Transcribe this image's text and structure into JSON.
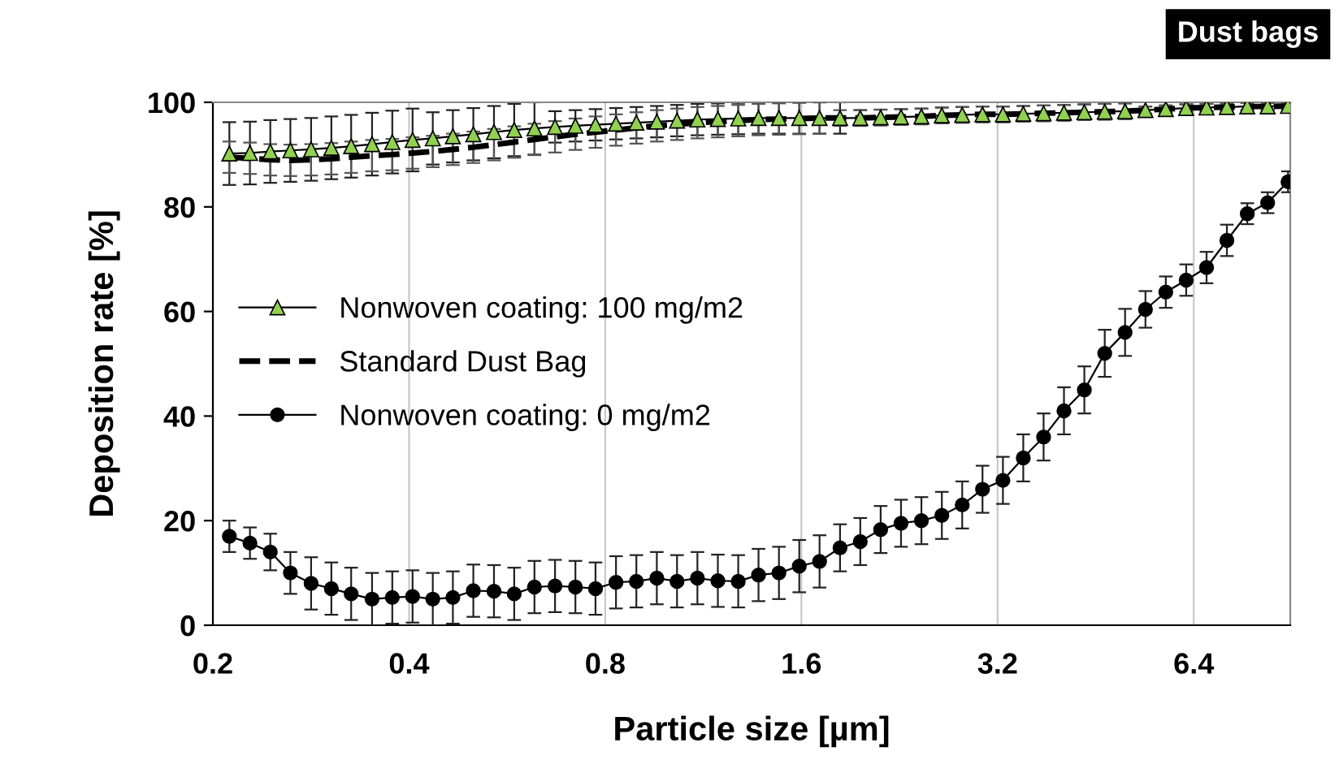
{
  "chart_data": {
    "type": "line",
    "xlabel": "Particle size [µm]",
    "ylabel": "Deposition rate [%]",
    "log": "x",
    "grid": "x",
    "legend": "center left",
    "xlim": [
      0.2,
      9
    ],
    "xticks": [
      0.2,
      0.4,
      0.8,
      1.6,
      3.2,
      6.4
    ],
    "ylim": [
      0,
      100
    ],
    "yticks": [
      0,
      20,
      40,
      60,
      80,
      100
    ],
    "annotations": [
      "Dust bags"
    ],
    "x": [
      0.212,
      0.228,
      0.245,
      0.263,
      0.283,
      0.304,
      0.326,
      0.351,
      0.377,
      0.405,
      0.435,
      0.467,
      0.502,
      0.54,
      0.58,
      0.623,
      0.67,
      0.72,
      0.773,
      0.831,
      0.893,
      0.96,
      1.031,
      1.108,
      1.191,
      1.28,
      1.375,
      1.478,
      1.588,
      1.706,
      1.834,
      1.97,
      2.117,
      2.275,
      2.445,
      2.628,
      2.824,
      3.034,
      3.261,
      3.504,
      3.765,
      4.046,
      4.348,
      4.673,
      5.021,
      5.396,
      5.798,
      6.231,
      6.696,
      7.195,
      7.732,
      8.309,
      8.929
    ],
    "series": [
      {
        "name": "Nonwoven coating: 100 mg/m2",
        "color": "#92d050",
        "marker": "triangle",
        "line_style": "solid",
        "values": [
          90.2,
          90.3,
          90.6,
          90.8,
          91,
          91.3,
          91.6,
          92,
          92.4,
          92.8,
          93.1,
          93.5,
          93.9,
          94.3,
          94.7,
          95,
          95.3,
          95.5,
          95.7,
          95.9,
          96.1,
          96.3,
          96.5,
          96.7,
          96.8,
          96.9,
          97,
          97,
          97,
          97,
          97,
          97,
          97.1,
          97.2,
          97.3,
          97.5,
          97.6,
          97.7,
          97.7,
          97.8,
          97.9,
          98,
          98.1,
          98.2,
          98.3,
          98.5,
          98.7,
          98.9,
          99,
          99.1,
          99.2,
          99.2,
          99.3
        ],
        "errors": [
          6,
          6,
          6,
          6,
          6,
          6,
          6,
          6,
          6,
          6,
          5,
          5,
          5,
          5,
          5,
          5,
          3,
          3,
          3,
          3,
          3,
          3,
          3,
          3,
          3,
          3,
          3,
          3,
          3,
          3,
          3,
          1.5,
          1.5,
          1.5,
          1.5,
          1.5,
          1.5,
          1.5,
          1.5,
          1.5,
          1.5,
          1.5,
          1.5,
          1.5,
          1.5,
          0.7,
          0.7,
          0.7,
          0.7,
          0.7,
          0.7,
          0.7,
          0.7
        ]
      },
      {
        "name": "Standard Dust Bag",
        "color": "#000000",
        "marker": "none",
        "line_style": "dashed",
        "values": [
          89.5,
          89.3,
          89,
          88.9,
          89,
          89.2,
          89.5,
          89.8,
          90,
          90.3,
          90.6,
          91,
          91.4,
          91.9,
          92.4,
          92.9,
          93.4,
          93.9,
          94.3,
          94.7,
          95.1,
          95.5,
          95.8,
          96.1,
          96.3,
          96.5,
          96.7,
          96.8,
          96.9,
          97,
          97,
          97,
          97.1,
          97.2,
          97.3,
          97.5,
          97.6,
          97.7,
          97.7,
          97.8,
          97.9,
          98,
          98.1,
          98.2,
          98.3,
          98.5,
          98.7,
          98.9,
          99,
          99.1,
          99.2,
          99.2,
          99.3
        ],
        "errors": [
          3,
          3,
          3,
          3,
          3,
          3,
          3,
          3,
          3,
          3,
          3,
          3,
          3,
          3,
          3,
          3,
          3,
          3,
          3,
          3,
          3,
          3,
          3,
          3,
          3,
          3,
          3,
          3,
          3,
          3,
          1.5,
          1.5,
          1.5,
          1.5,
          1.5,
          1.5,
          1.5,
          1.5,
          1.5,
          1.5,
          1.5,
          1.5,
          1.5,
          1.5,
          1.5,
          0.7,
          0.7,
          0.7,
          0.7,
          0.7,
          0.7,
          0.7,
          0.7
        ]
      },
      {
        "name": "Nonwoven coating: 0 mg/m2",
        "color": "#000000",
        "marker": "circle",
        "line_style": "solid",
        "values": [
          17,
          15.7,
          14,
          10,
          8,
          7,
          6,
          5,
          5.3,
          5.5,
          5,
          5.3,
          6.6,
          6.5,
          6,
          7.3,
          7.5,
          7.3,
          7,
          8.2,
          8.4,
          9,
          8.4,
          9,
          8.5,
          8.4,
          9.6,
          10,
          11.3,
          12.2,
          14.8,
          16,
          18.3,
          19.5,
          20,
          21,
          23,
          26,
          27.7,
          32,
          36,
          41,
          45,
          52,
          56,
          60.4,
          63.7,
          66,
          68.4,
          73.6,
          78.7,
          80.8,
          84.8
        ],
        "errors": [
          3,
          3,
          3.5,
          4,
          5,
          5,
          5,
          5,
          5,
          5,
          5,
          5,
          5,
          5,
          5,
          5,
          5,
          5,
          5,
          5,
          5,
          5,
          5,
          5,
          5,
          5,
          5,
          5,
          5,
          5,
          4.5,
          4.5,
          4.5,
          4.5,
          4.5,
          4.5,
          4.5,
          4.5,
          4.5,
          4.5,
          4.5,
          4.5,
          4.5,
          4.5,
          4.5,
          3.5,
          3,
          3,
          3,
          3,
          2,
          2,
          2
        ]
      }
    ]
  }
}
